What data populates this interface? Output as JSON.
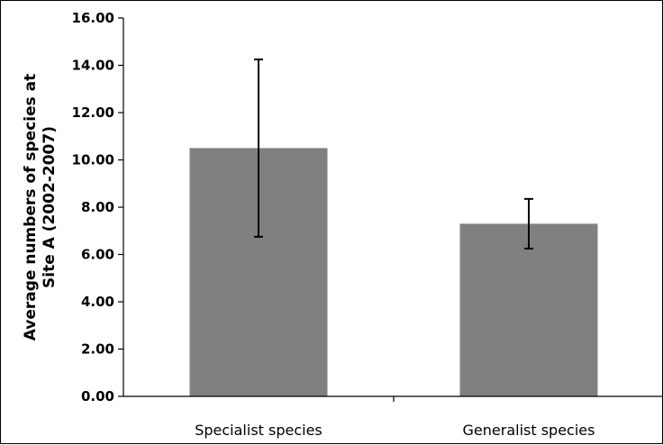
{
  "chart_data": {
    "type": "bar",
    "title": "",
    "xlabel": "",
    "ylabel_lines": [
      "Average numbers of species at",
      "Site A (2002-2007)"
    ],
    "categories": [
      "Specialist species",
      "Generalist species"
    ],
    "values": [
      10.5,
      7.3
    ],
    "error_high": [
      14.25,
      8.35
    ],
    "error_low": [
      6.75,
      6.25
    ],
    "ylim": [
      0,
      16
    ],
    "yticks": [
      "0.00",
      "2.00",
      "4.00",
      "6.00",
      "8.00",
      "10.00",
      "12.00",
      "14.00",
      "16.00"
    ],
    "grid": false,
    "legend": "none",
    "bar_color": "#808080",
    "error_color": "#000000"
  }
}
